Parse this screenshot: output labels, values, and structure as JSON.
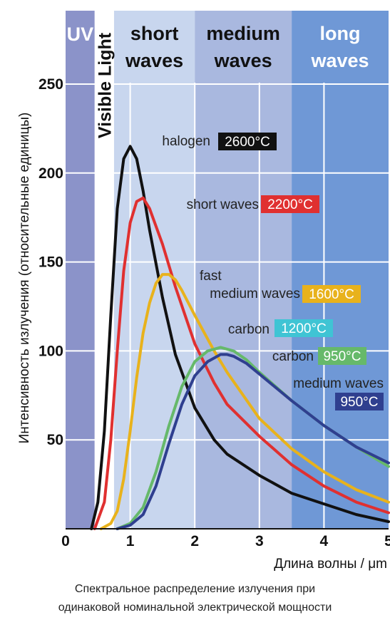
{
  "chart_data": {
    "type": "line",
    "xlabel": "Длина волны / μm",
    "ylabel": "Интенсивность излучения (относительные единицы)",
    "xlim": [
      0,
      5
    ],
    "ylim": [
      0,
      250
    ],
    "x_ticks": [
      "0",
      "1",
      "2",
      "3",
      "4",
      "5"
    ],
    "y_ticks": [
      "50",
      "100",
      "150",
      "200",
      "250"
    ],
    "y_tick_values": [
      50,
      100,
      150,
      200,
      250
    ],
    "x_tick_values": [
      0,
      1,
      2,
      3,
      4,
      5
    ],
    "bands": [
      {
        "label": "UV",
        "x": [
          0,
          0.45
        ],
        "color": "#8b93c9"
      },
      {
        "label": "Visible Light",
        "x": [
          0.45,
          0.75
        ],
        "color": "#ffffff"
      },
      {
        "label": "short waves",
        "x": [
          0.75,
          2.0
        ],
        "color": "#c8d6ee"
      },
      {
        "label": "medium waves",
        "x": [
          2.0,
          3.5
        ],
        "color": "#a9b8df"
      },
      {
        "label": "long waves",
        "x": [
          3.5,
          5.0
        ],
        "color": "#6f98d6"
      }
    ],
    "series": [
      {
        "name": "halogen",
        "temperature": "2600°C",
        "color": "#111111",
        "x": [
          0.4,
          0.5,
          0.6,
          0.7,
          0.8,
          0.9,
          1.0,
          1.1,
          1.2,
          1.3,
          1.5,
          1.7,
          2.0,
          2.3,
          2.5,
          3.0,
          3.5,
          4.0,
          4.5,
          5.0
        ],
        "y": [
          0,
          15,
          55,
          120,
          180,
          208,
          215,
          208,
          190,
          168,
          130,
          98,
          68,
          50,
          42,
          30,
          20,
          14,
          8,
          4
        ]
      },
      {
        "name": "short waves",
        "temperature": "2200°C",
        "color": "#e03030",
        "x": [
          0.45,
          0.6,
          0.7,
          0.8,
          0.9,
          1.0,
          1.1,
          1.2,
          1.3,
          1.5,
          1.7,
          2.0,
          2.3,
          2.5,
          3.0,
          3.5,
          4.0,
          4.5,
          5.0
        ],
        "y": [
          0,
          15,
          50,
          100,
          145,
          172,
          184,
          186,
          180,
          160,
          136,
          104,
          82,
          70,
          52,
          36,
          24,
          15,
          9
        ]
      },
      {
        "name": "fast medium waves",
        "temperature": "1600°C",
        "color": "#e8b21c",
        "x": [
          0.55,
          0.7,
          0.8,
          0.9,
          1.0,
          1.1,
          1.2,
          1.3,
          1.4,
          1.5,
          1.6,
          1.7,
          1.8,
          2.0,
          2.3,
          2.5,
          3.0,
          3.5,
          4.0,
          4.5,
          5.0
        ],
        "y": [
          0,
          3,
          10,
          28,
          55,
          85,
          110,
          127,
          138,
          143,
          143,
          140,
          134,
          120,
          100,
          88,
          62,
          45,
          32,
          22,
          15
        ]
      },
      {
        "name": "carbon",
        "temperature": "1200°C",
        "color": "#3fc4d4",
        "x": [],
        "y": []
      },
      {
        "name": "carbon",
        "temperature": "950°C",
        "color": "#66b96a",
        "x": [
          0.8,
          1.0,
          1.2,
          1.4,
          1.6,
          1.8,
          2.0,
          2.2,
          2.4,
          2.6,
          2.8,
          3.0,
          3.5,
          4.0,
          4.5,
          5.0
        ],
        "y": [
          0,
          3,
          12,
          32,
          58,
          80,
          94,
          100,
          102,
          100,
          95,
          88,
          72,
          58,
          46,
          35
        ]
      },
      {
        "name": "medium waves",
        "temperature": "950°C",
        "color": "#2f3f8f",
        "x": [
          0.8,
          1.0,
          1.2,
          1.4,
          1.6,
          1.8,
          2.0,
          2.2,
          2.4,
          2.5,
          2.6,
          2.8,
          3.0,
          3.5,
          4.0,
          4.5,
          5.0
        ],
        "y": [
          0,
          2,
          8,
          24,
          48,
          70,
          86,
          94,
          98,
          98,
          97,
          93,
          87,
          72,
          58,
          46,
          37
        ]
      }
    ],
    "annotations": [
      {
        "text": "halogen",
        "temp": "2600°C",
        "temp_bg": "#111111"
      },
      {
        "text": "short waves",
        "temp": "2200°C",
        "temp_bg": "#e03030"
      },
      {
        "text_lines": [
          "fast",
          "medium waves"
        ],
        "temp": "1600°C",
        "temp_bg": "#e8b21c"
      },
      {
        "text": "carbon",
        "temp": "1200°C",
        "temp_bg": "#3fc4d4"
      },
      {
        "text": "carbon",
        "temp": "950°C",
        "temp_bg": "#66b96a"
      },
      {
        "text": "medium waves",
        "temp": "950°C",
        "temp_bg": "#2f3f8f"
      }
    ]
  },
  "caption": {
    "line1": "Спектральное распределение излучения при",
    "line2": "одинаковой номинальной электрической мощности"
  }
}
